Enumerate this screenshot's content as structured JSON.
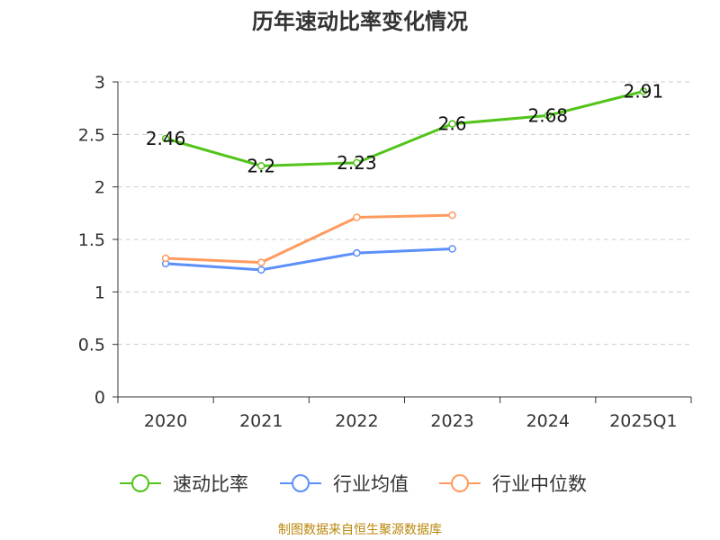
{
  "chart_data": {
    "type": "line",
    "title": "历年速动比率变化情况",
    "categories": [
      "2020",
      "2021",
      "2022",
      "2023",
      "2024",
      "2025Q1"
    ],
    "ylim": [
      0,
      3
    ],
    "yticks": [
      "0",
      "0.5",
      "1",
      "1.5",
      "2",
      "2.5",
      "3"
    ],
    "grid": true,
    "legend_position": "bottom",
    "series": [
      {
        "name": "速动比率",
        "color": "#52c41a",
        "values": [
          2.46,
          2.2,
          2.23,
          2.6,
          2.68,
          2.91
        ],
        "labels": [
          "2.46",
          "2.2",
          "2.23",
          "2.6",
          "2.68",
          "2.91"
        ]
      },
      {
        "name": "行业均值",
        "color": "#5b8ff9",
        "values": [
          1.27,
          1.21,
          1.37,
          1.41,
          null,
          null
        ]
      },
      {
        "name": "行业中位数",
        "color": "#ff9b5f",
        "values": [
          1.32,
          1.28,
          1.71,
          1.73,
          null,
          null
        ]
      }
    ]
  },
  "source": "制图数据来自恒生聚源数据库"
}
